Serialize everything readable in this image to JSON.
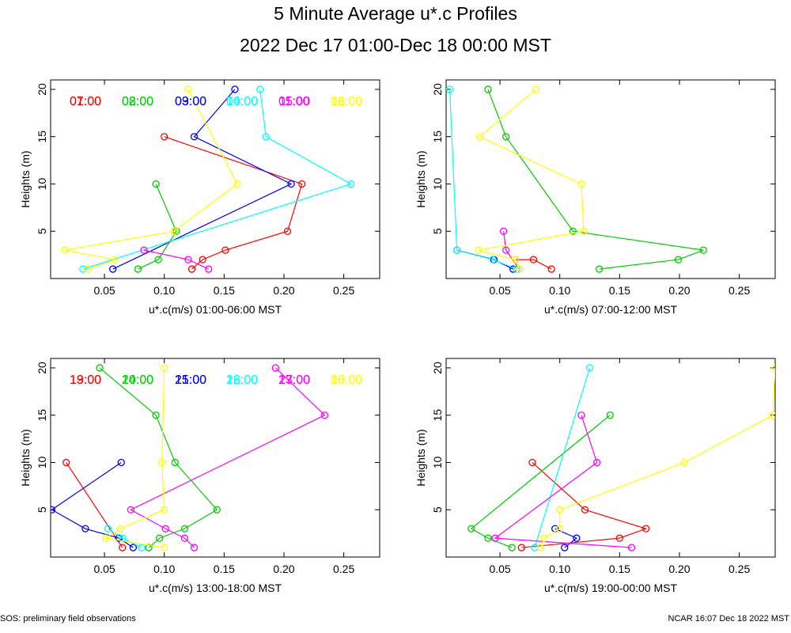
{
  "title": "5 Minute Average u*.c Profiles",
  "subtitle": "2022 Dec 17 01:00-Dec 18 00:00 MST",
  "footer_left": "SOS: preliminary field observations",
  "footer_right": "NCAR 16:07 Dec 18 2022 MST",
  "colors": [
    "#ff0000",
    "#00cc00",
    "#0000ff",
    "#00ffff",
    "#ff00ff",
    "#ffff00"
  ],
  "chart_data": [
    {
      "type": "line",
      "xlabel": "u*.c(m/s) 01:00-06:00 MST",
      "ylabel": "Heights (m)",
      "xlim": [
        0.005,
        0.28
      ],
      "ylim": [
        0,
        21
      ],
      "xticks": [
        "0.05",
        "0.10",
        "0.15",
        "0.20",
        "0.25"
      ],
      "yticks": [
        "5",
        "10",
        "15",
        "20"
      ],
      "series": [
        {
          "name": "01:00",
          "points": [
            [
              0.123,
              1
            ],
            [
              0.132,
              2
            ],
            [
              0.151,
              3
            ],
            [
              0.203,
              5
            ],
            [
              0.215,
              10
            ],
            [
              0.1,
              15
            ]
          ]
        },
        {
          "name": "02:00",
          "points": [
            [
              0.078,
              1
            ],
            [
              0.095,
              2
            ],
            [
              0.11,
              5
            ],
            [
              0.093,
              10
            ]
          ]
        },
        {
          "name": "03:00",
          "points": [
            [
              0.057,
              1
            ],
            [
              0.206,
              10
            ],
            [
              0.125,
              15
            ],
            [
              0.159,
              20
            ]
          ]
        },
        {
          "name": "04:00",
          "points": [
            [
              0.032,
              1
            ],
            [
              0.256,
              10
            ],
            [
              0.185,
              15
            ],
            [
              0.18,
              20
            ]
          ]
        },
        {
          "name": "05:00",
          "points": [
            [
              0.137,
              1
            ],
            [
              0.12,
              2
            ],
            [
              0.083,
              3
            ]
          ]
        },
        {
          "name": "06:00",
          "points": [
            [
              0.036,
              1
            ],
            [
              0.059,
              2
            ],
            [
              0.017,
              3
            ],
            [
              0.108,
              5
            ],
            [
              0.161,
              10
            ],
            [
              0.12,
              20
            ]
          ]
        }
      ]
    },
    {
      "type": "line",
      "xlabel": "u*.c(m/s) 07:00-12:00 MST",
      "ylabel": "Heights (m)",
      "xlim": [
        0.005,
        0.28
      ],
      "ylim": [
        0,
        21
      ],
      "xticks": [
        "0.05",
        "0.10",
        "0.15",
        "0.20",
        "0.25"
      ],
      "yticks": [
        "5",
        "10",
        "15",
        "20"
      ],
      "series": [
        {
          "name": "07:00",
          "points": [
            [
              0.093,
              1
            ],
            [
              0.078,
              2
            ],
            [
              0.063,
              2
            ]
          ]
        },
        {
          "name": "08:00",
          "points": [
            [
              0.133,
              1
            ],
            [
              0.199,
              2
            ],
            [
              0.22,
              3
            ],
            [
              0.111,
              5
            ],
            [
              0.055,
              15
            ],
            [
              0.04,
              20
            ]
          ]
        },
        {
          "name": "09:00",
          "points": [
            [
              0.061,
              1
            ],
            [
              0.045,
              2
            ],
            [
              0.014,
              3
            ]
          ]
        },
        {
          "name": "10:00",
          "points": [
            [
              0.064,
              1
            ],
            [
              0.044,
              2
            ],
            [
              0.014,
              3
            ],
            [
              0.008,
              20
            ]
          ]
        },
        {
          "name": "11:00",
          "points": [
            [
              0.066,
              1
            ],
            [
              0.055,
              3
            ],
            [
              0.053,
              5
            ]
          ]
        },
        {
          "name": "12:00",
          "points": [
            [
              0.066,
              1
            ],
            [
              0.063,
              2
            ],
            [
              0.032,
              3
            ],
            [
              0.12,
              5
            ],
            [
              0.118,
              10
            ],
            [
              0.033,
              15
            ],
            [
              0.08,
              20
            ]
          ]
        }
      ]
    },
    {
      "type": "line",
      "xlabel": "u*.c(m/s) 13:00-18:00 MST",
      "ylabel": "Heights (m)",
      "xlim": [
        0.005,
        0.28
      ],
      "ylim": [
        0,
        21
      ],
      "xticks": [
        "0.05",
        "0.10",
        "0.15",
        "0.20",
        "0.25"
      ],
      "yticks": [
        "5",
        "10",
        "15",
        "20"
      ],
      "series": [
        {
          "name": "13:00",
          "points": [
            [
              0.065,
              1
            ],
            [
              0.018,
              10
            ]
          ]
        },
        {
          "name": "14:00",
          "points": [
            [
              0.087,
              1
            ],
            [
              0.096,
              2
            ],
            [
              0.117,
              3
            ],
            [
              0.144,
              5
            ],
            [
              0.109,
              10
            ],
            [
              0.093,
              15
            ],
            [
              0.046,
              20
            ]
          ]
        },
        {
          "name": "15:00",
          "points": [
            [
              0.074,
              1
            ],
            [
              0.062,
              2
            ],
            [
              0.034,
              3
            ],
            [
              0.006,
              5
            ],
            [
              0.064,
              10
            ]
          ]
        },
        {
          "name": "16:00",
          "points": [
            [
              0.081,
              1
            ],
            [
              0.065,
              2
            ],
            [
              0.053,
              3
            ]
          ]
        },
        {
          "name": "17:00",
          "points": [
            [
              0.125,
              1
            ],
            [
              0.117,
              2
            ],
            [
              0.101,
              3
            ],
            [
              0.072,
              5
            ],
            [
              0.234,
              15
            ],
            [
              0.193,
              20
            ]
          ]
        },
        {
          "name": "18:00",
          "points": [
            [
              0.1,
              1
            ],
            [
              0.051,
              2
            ],
            [
              0.063,
              3
            ],
            [
              0.1,
              5
            ],
            [
              0.098,
              10
            ],
            [
              0.1,
              20
            ]
          ]
        }
      ]
    },
    {
      "type": "line",
      "xlabel": "u*.c(m/s) 19:00-00:00 MST",
      "ylabel": "Heights (m)",
      "xlim": [
        0.005,
        0.28
      ],
      "ylim": [
        0,
        21
      ],
      "xticks": [
        "0.05",
        "0.10",
        "0.15",
        "0.20",
        "0.25"
      ],
      "yticks": [
        "5",
        "10",
        "15",
        "20"
      ],
      "series": [
        {
          "name": "19:00",
          "points": [
            [
              0.068,
              1
            ],
            [
              0.15,
              2
            ],
            [
              0.172,
              3
            ],
            [
              0.121,
              5
            ],
            [
              0.077,
              10
            ]
          ]
        },
        {
          "name": "20:00",
          "points": [
            [
              0.06,
              1
            ],
            [
              0.04,
              2
            ],
            [
              0.026,
              3
            ],
            [
              0.142,
              15
            ]
          ]
        },
        {
          "name": "21:00",
          "points": [
            [
              0.104,
              1
            ],
            [
              0.114,
              2
            ],
            [
              0.096,
              3
            ]
          ]
        },
        {
          "name": "22:00",
          "points": [
            [
              0.079,
              1
            ],
            [
              0.125,
              20
            ]
          ]
        },
        {
          "name": "23:00",
          "points": [
            [
              0.16,
              1
            ],
            [
              0.046,
              2
            ],
            [
              0.131,
              10
            ],
            [
              0.118,
              15
            ]
          ]
        },
        {
          "name": "00:00",
          "points": [
            [
              0.084,
              1
            ],
            [
              0.087,
              2
            ],
            [
              0.1,
              3
            ],
            [
              0.1,
              5
            ],
            [
              0.204,
              10
            ],
            [
              0.278,
              15
            ],
            [
              0.28,
              20
            ]
          ]
        }
      ]
    }
  ]
}
